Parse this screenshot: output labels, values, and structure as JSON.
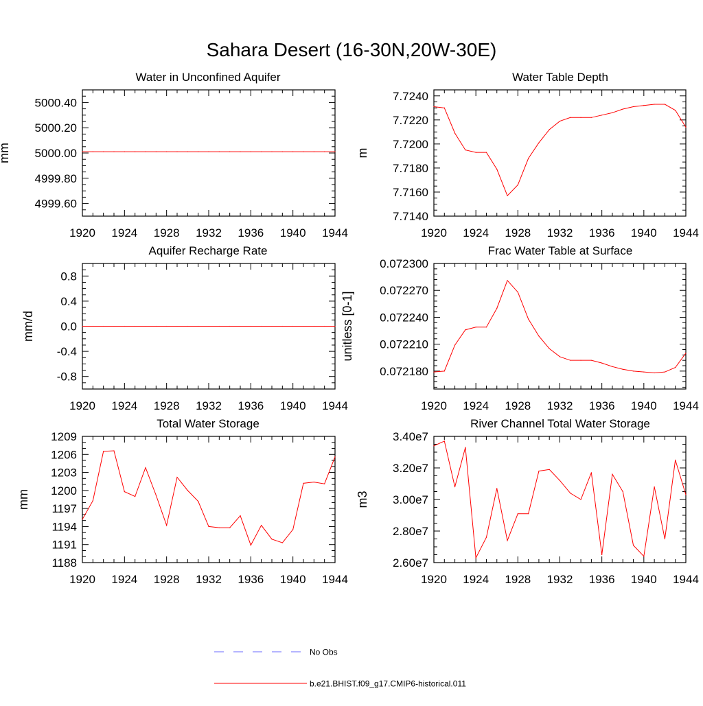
{
  "page": {
    "title": "Sahara Desert (16-30N,20W-30E)"
  },
  "colors": {
    "model": "#ff0000",
    "obs": "#6a6aff",
    "axis": "#000000"
  },
  "legend": {
    "obs_label": "No Obs",
    "model_label": "b.e21.BHIST.f09_g17.CMIP6-historical.011"
  },
  "chart_data": [
    {
      "type": "line",
      "title": "Water in Unconfined Aquifer",
      "ylabel": "mm",
      "xlabel": "",
      "xlim": [
        1920,
        1944
      ],
      "ylim": [
        4999.5,
        5000.5
      ],
      "xticks": [
        1920,
        1924,
        1928,
        1932,
        1936,
        1940,
        1944
      ],
      "xtick_labels": [
        "1920",
        "1924",
        "1928",
        "1932",
        "1936",
        "1940",
        "1944"
      ],
      "yticks": [
        4999.6,
        4999.8,
        5000.0,
        5000.2,
        5000.4
      ],
      "ytick_labels": [
        "4999.60",
        "4999.80",
        "5000.00",
        "5000.20",
        "5000.40"
      ],
      "minor_yticks_per_major": 4,
      "x": [
        1920,
        1921,
        1922,
        1923,
        1924,
        1925,
        1926,
        1927,
        1928,
        1929,
        1930,
        1931,
        1932,
        1933,
        1934,
        1935,
        1936,
        1937,
        1938,
        1939,
        1940,
        1941,
        1942,
        1943,
        1944
      ],
      "series": [
        {
          "values": [
            5000.01,
            5000.01,
            5000.01,
            5000.01,
            5000.01,
            5000.01,
            5000.01,
            5000.01,
            5000.01,
            5000.01,
            5000.01,
            5000.01,
            5000.01,
            5000.01,
            5000.01,
            5000.01,
            5000.01,
            5000.01,
            5000.01,
            5000.01,
            5000.01,
            5000.01,
            5000.01,
            5000.01,
            5000.01
          ]
        }
      ]
    },
    {
      "type": "line",
      "title": "Water Table Depth",
      "ylabel": "m",
      "xlabel": "",
      "xlim": [
        1920,
        1944
      ],
      "ylim": [
        7.714,
        7.7245
      ],
      "xticks": [
        1920,
        1924,
        1928,
        1932,
        1936,
        1940,
        1944
      ],
      "xtick_labels": [
        "1920",
        "1924",
        "1928",
        "1932",
        "1936",
        "1940",
        "1944"
      ],
      "yticks": [
        7.714,
        7.716,
        7.718,
        7.72,
        7.722,
        7.724
      ],
      "ytick_labels": [
        "7.7140",
        "7.7160",
        "7.7180",
        "7.7200",
        "7.7220",
        "7.7240"
      ],
      "minor_yticks_per_major": 4,
      "x": [
        1920,
        1921,
        1922,
        1923,
        1924,
        1925,
        1926,
        1927,
        1928,
        1929,
        1930,
        1931,
        1932,
        1933,
        1934,
        1935,
        1936,
        1937,
        1938,
        1939,
        1940,
        1941,
        1942,
        1943,
        1944
      ],
      "series": [
        {
          "values": [
            7.7231,
            7.723,
            7.7209,
            7.7195,
            7.7193,
            7.7193,
            7.7179,
            7.7157,
            7.7166,
            7.7188,
            7.7201,
            7.7212,
            7.7219,
            7.7222,
            7.7222,
            7.7222,
            7.7224,
            7.7226,
            7.7229,
            7.7231,
            7.7232,
            7.7233,
            7.7233,
            7.7228,
            7.7214
          ]
        }
      ]
    },
    {
      "type": "line",
      "title": "Aquifer Recharge Rate",
      "ylabel": "mm/d",
      "xlabel": "",
      "xlim": [
        1920,
        1944
      ],
      "ylim": [
        -1.0,
        1.0
      ],
      "xticks": [
        1920,
        1924,
        1928,
        1932,
        1936,
        1940,
        1944
      ],
      "xtick_labels": [
        "1920",
        "1924",
        "1928",
        "1932",
        "1936",
        "1940",
        "1944"
      ],
      "yticks": [
        -0.8,
        -0.4,
        0.0,
        0.4,
        0.8
      ],
      "ytick_labels": [
        "-0.8",
        "-0.4",
        "0.0",
        "0.4",
        "0.8"
      ],
      "minor_yticks_per_major": 4,
      "x": [
        1920,
        1921,
        1922,
        1923,
        1924,
        1925,
        1926,
        1927,
        1928,
        1929,
        1930,
        1931,
        1932,
        1933,
        1934,
        1935,
        1936,
        1937,
        1938,
        1939,
        1940,
        1941,
        1942,
        1943,
        1944
      ],
      "series": [
        {
          "values": [
            0,
            0,
            0,
            0,
            0,
            0,
            0,
            0,
            0,
            0,
            0,
            0,
            0,
            0,
            0,
            0,
            0,
            0,
            0,
            0,
            0,
            0,
            0,
            0,
            0
          ]
        }
      ]
    },
    {
      "type": "line",
      "title": "Frac Water Table at Surface",
      "ylabel": "unitless [0-1]",
      "xlabel": "",
      "xlim": [
        1920,
        1944
      ],
      "ylim": [
        0.07216,
        0.0723
      ],
      "xticks": [
        1920,
        1924,
        1928,
        1932,
        1936,
        1940,
        1944
      ],
      "xtick_labels": [
        "1920",
        "1924",
        "1928",
        "1932",
        "1936",
        "1940",
        "1944"
      ],
      "yticks": [
        0.0723,
        0.07227,
        0.07224,
        0.07221,
        0.07218
      ],
      "ytick_labels": [
        "0.072300",
        "0.072270",
        "0.072240",
        "0.072210",
        "0.072180"
      ],
      "minor_yticks_per_major": 5,
      "x": [
        1920,
        1921,
        1922,
        1923,
        1924,
        1925,
        1926,
        1927,
        1928,
        1929,
        1930,
        1931,
        1932,
        1933,
        1934,
        1935,
        1936,
        1937,
        1938,
        1939,
        1940,
        1941,
        1942,
        1943,
        1944
      ],
      "series": [
        {
          "values": [
            0.072179,
            0.07218,
            0.072209,
            0.072226,
            0.072229,
            0.072229,
            0.07225,
            0.072281,
            0.072268,
            0.072238,
            0.072219,
            0.072205,
            0.072196,
            0.072192,
            0.072192,
            0.072192,
            0.072189,
            0.072185,
            0.072182,
            0.07218,
            0.072179,
            0.072178,
            0.072179,
            0.072184,
            0.0722
          ]
        }
      ]
    },
    {
      "type": "line",
      "title": "Total Water Storage",
      "ylabel": "mm",
      "xlabel": "",
      "xlim": [
        1920,
        1944
      ],
      "ylim": [
        1188,
        1209
      ],
      "xticks": [
        1920,
        1924,
        1928,
        1932,
        1936,
        1940,
        1944
      ],
      "xtick_labels": [
        "1920",
        "1924",
        "1928",
        "1932",
        "1936",
        "1940",
        "1944"
      ],
      "yticks": [
        1188,
        1191,
        1194,
        1197,
        1200,
        1203,
        1206,
        1209
      ],
      "ytick_labels": [
        "1188",
        "1191",
        "1194",
        "1197",
        "1200",
        "1203",
        "1206",
        "1209"
      ],
      "minor_yticks_per_major": 3,
      "x": [
        1920,
        1921,
        1922,
        1923,
        1924,
        1925,
        1926,
        1927,
        1928,
        1929,
        1930,
        1931,
        1932,
        1933,
        1934,
        1935,
        1936,
        1937,
        1938,
        1939,
        1940,
        1941,
        1942,
        1943,
        1944
      ],
      "series": [
        {
          "values": [
            1195.2,
            1198.3,
            1206.5,
            1206.6,
            1199.8,
            1199.0,
            1203.8,
            1199.2,
            1194.2,
            1202.2,
            1200.0,
            1198.2,
            1194.0,
            1193.8,
            1193.8,
            1195.8,
            1190.9,
            1194.2,
            1191.9,
            1191.3,
            1193.5,
            1201.2,
            1201.4,
            1201.1,
            1205.6
          ]
        }
      ]
    },
    {
      "type": "line",
      "title": "River Channel Total Water Storage",
      "ylabel": "m3",
      "xlabel": "",
      "xlim": [
        1920,
        1944
      ],
      "ylim": [
        26000000,
        34000000
      ],
      "xticks": [
        1920,
        1924,
        1928,
        1932,
        1936,
        1940,
        1944
      ],
      "xtick_labels": [
        "1920",
        "1924",
        "1928",
        "1932",
        "1936",
        "1940",
        "1944"
      ],
      "yticks": [
        26000000,
        28000000,
        30000000,
        32000000,
        34000000
      ],
      "ytick_labels": [
        "2.60e7",
        "2.80e7",
        "3.00e7",
        "3.20e7",
        "3.40e7"
      ],
      "minor_yticks_per_major": 4,
      "x": [
        1920,
        1921,
        1922,
        1923,
        1924,
        1925,
        1926,
        1927,
        1928,
        1929,
        1930,
        1931,
        1932,
        1933,
        1934,
        1935,
        1936,
        1937,
        1938,
        1939,
        1940,
        1941,
        1942,
        1943,
        1944
      ],
      "series": [
        {
          "values": [
            33400000,
            33700000,
            30800000,
            33300000,
            26300000,
            27600000,
            30700000,
            27400000,
            29100000,
            29100000,
            31800000,
            31900000,
            31200000,
            30400000,
            30000000,
            31700000,
            26500000,
            31600000,
            30500000,
            27100000,
            26400000,
            30800000,
            27500000,
            32500000,
            30300000
          ]
        }
      ]
    }
  ]
}
